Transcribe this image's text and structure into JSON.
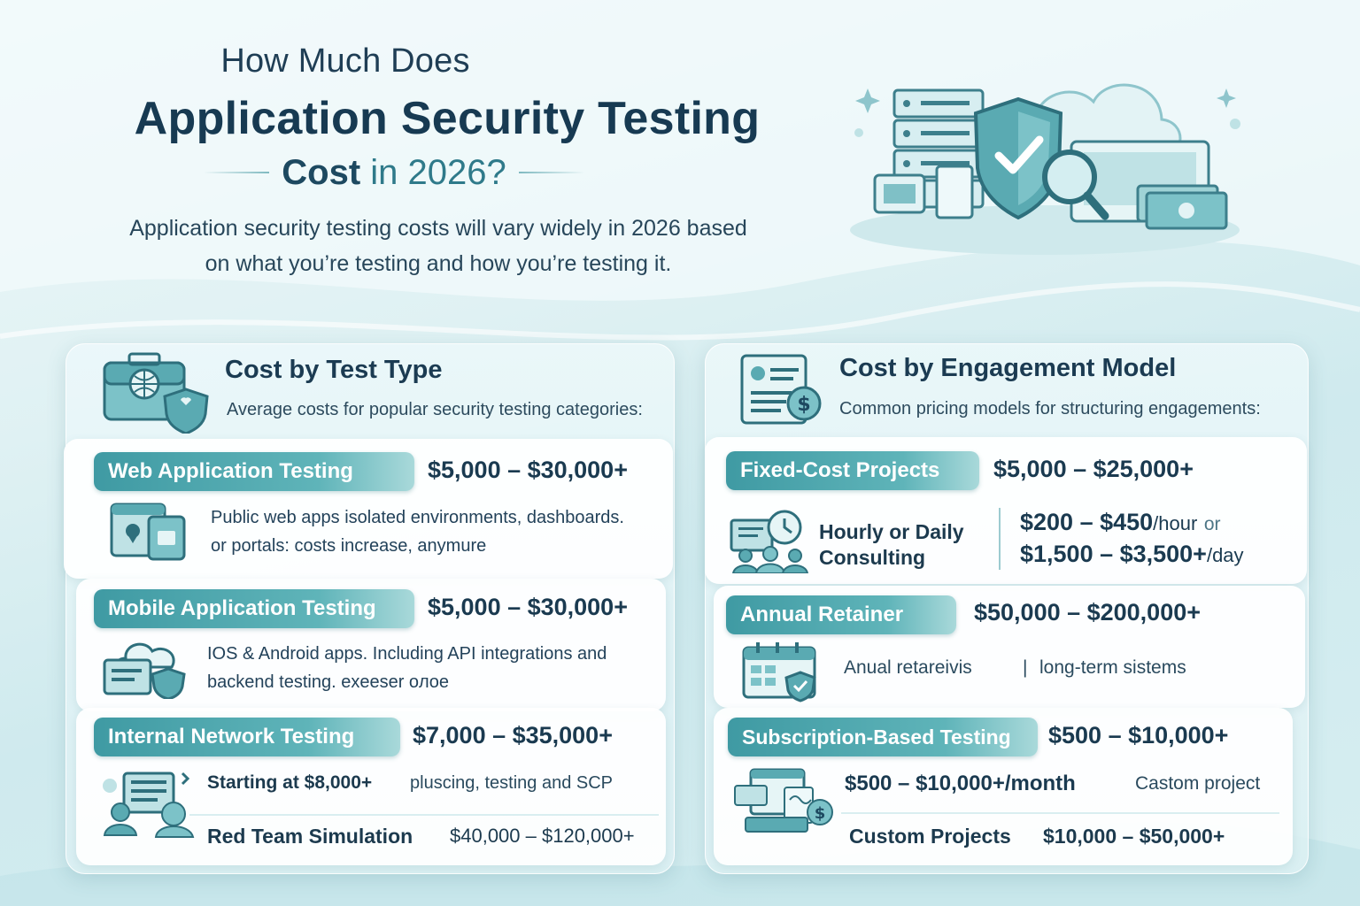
{
  "header": {
    "pre_title": "How Much Does",
    "main_title": "Application Security Testing",
    "sub_title_bold": "Cost",
    "sub_title_rest": "in 2026?",
    "intro_line1": "Application security testing costs will vary widely in 2026 based",
    "intro_line2": "on what you’re testing and how you’re testing it."
  },
  "left": {
    "title": "Cost by Test Type",
    "desc": "Average costs for popular security testing categories:",
    "items": [
      {
        "label": "Web Application Testing",
        "price": "$5,000 – $30,000+",
        "desc1": "Public web apps isolated environments, dashboards.",
        "desc2": "or portals: costs increase, anymure"
      },
      {
        "label": "Mobile Application Testing",
        "price": "$5,000 – $30,000+",
        "desc1": "IOS & Android apps. Including API integrations and",
        "desc2": "backend testing. exeeser oлoe"
      },
      {
        "label": "Internal Network Testing",
        "price": "$7,000 – $35,000+",
        "start_bold": "Starting at $8,000+",
        "start_rest": "pluscing, testing and SCP",
        "red_team": "Red Team Simulation",
        "red_price": "$40,000 – $120,000+"
      }
    ]
  },
  "right": {
    "title": "Cost by Engagement Model",
    "desc": "Common pricing models for structuring engagements:",
    "fixed": {
      "label": "Fixed-Cost Projects",
      "price": "$5,000 – $25,000+"
    },
    "hourly": {
      "label1": "Hourly or Daily",
      "label2": "Consulting",
      "price1": "$200 – $450",
      "unit1": "/hour",
      "or": "or",
      "price2": "$1,500 – $3,500+",
      "unit2": "/day"
    },
    "retainer": {
      "label": "Annual Retainer",
      "price": "$50,000 – $200,000+",
      "desc_a": "Anual retareivis",
      "sep": "|",
      "desc_b": "long-term sistems"
    },
    "subscription": {
      "label": "Subscription-Based Testing",
      "price": "$500 – $10,000+",
      "month_price": "$500 – $10,000+/month",
      "custom_note": "Castom project",
      "custom_label": "Custom Projects",
      "custom_price": "$10,000 – $50,000+"
    }
  },
  "colors": {
    "accent": "#3f9aa3",
    "title": "#173a52",
    "background": "#dff1f3"
  }
}
